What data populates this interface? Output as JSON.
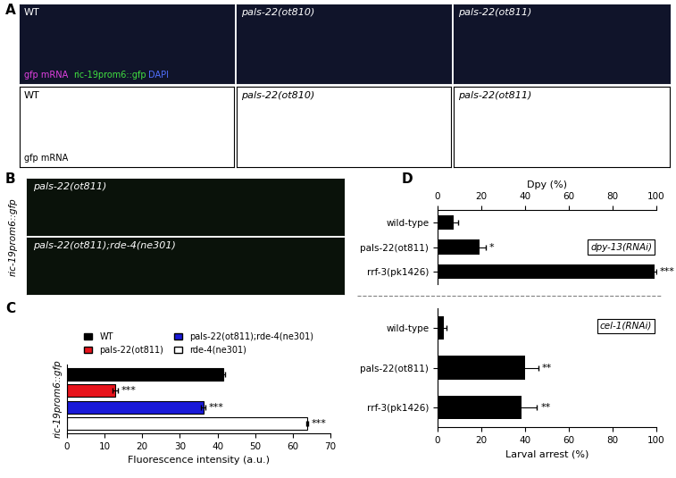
{
  "panel_labels": [
    "A",
    "B",
    "C",
    "D"
  ],
  "panel_A": {
    "top_row": [
      "WT",
      "pals-22(ot810)",
      "pals-22(ot811)"
    ],
    "channel_labels": [
      {
        "text": "gfp mRNA",
        "color": "#e040e0"
      },
      {
        "text": "ric-19prom6::gfp",
        "color": "#40e040"
      },
      {
        "text": "DAPI",
        "color": "#5070ff"
      }
    ],
    "bottom_row": [
      "WT",
      "pals-22(ot810)",
      "pals-22(ot811)"
    ],
    "bottom_channel_label": "gfp mRNA"
  },
  "panel_B": {
    "side_label": "ric-19prom6::gfp",
    "images": [
      "pals-22(ot811)",
      "pals-22(ot811);rde-4(ne301)"
    ]
  },
  "chart_data": [
    {
      "type": "bar",
      "orientation": "horizontal",
      "y_label": "ric-19prom6::gfp",
      "x_label": "Fluorescence intensity (a.u.)",
      "categories": [
        null
      ],
      "series": [
        {
          "name": "WT",
          "color": "#000000",
          "values": [
            41.5
          ],
          "error": [
            0.5
          ],
          "significance": [
            null
          ]
        },
        {
          "name": "pals-22(ot811)",
          "color": "#e8141c",
          "values": [
            12.8
          ],
          "error": [
            0.8
          ],
          "significance": [
            "***"
          ]
        },
        {
          "name": "pals-22(ot811);rde-4(ne301)",
          "color": "#1a1ad8",
          "values": [
            36.2
          ],
          "error": [
            0.6
          ],
          "significance": [
            "***"
          ]
        },
        {
          "name": "rde-4(ne301)",
          "color": "#ffffff",
          "values": [
            63.8
          ],
          "error": [
            0.3
          ],
          "significance": [
            "***"
          ]
        }
      ],
      "xlim": [
        0,
        70
      ],
      "xticks": [
        0,
        10,
        20,
        30,
        40,
        50,
        60,
        70
      ],
      "legend": "top",
      "tick_labels": "x"
    },
    {
      "type": "bar",
      "orientation": "horizontal",
      "x_label": "Dpy (%)",
      "annotation": "dpy-13(RNAi)",
      "categories": [
        "wild-type",
        "pals-22(ot811)",
        "rrf-3(pk1426)"
      ],
      "values": [
        7.5,
        19,
        99
      ],
      "error": [
        2,
        3,
        1
      ],
      "significance": [
        null,
        "*",
        "***"
      ],
      "color": "#000000",
      "xlim": [
        0,
        100
      ],
      "xticks": [
        0,
        20,
        40,
        60,
        80,
        100
      ]
    },
    {
      "type": "bar",
      "orientation": "horizontal",
      "x_label": "Larval arrest (%)",
      "annotation": "cel-1(RNAi)",
      "categories": [
        "wild-type",
        "pals-22(ot811)",
        "rrf-3(pk1426)"
      ],
      "values": [
        3,
        40,
        38.5
      ],
      "error": [
        1,
        6,
        7
      ],
      "significance": [
        null,
        "**",
        "**"
      ],
      "color": "#000000",
      "xlim": [
        0,
        100
      ],
      "xticks": [
        0,
        20,
        40,
        60,
        80,
        100
      ]
    }
  ]
}
